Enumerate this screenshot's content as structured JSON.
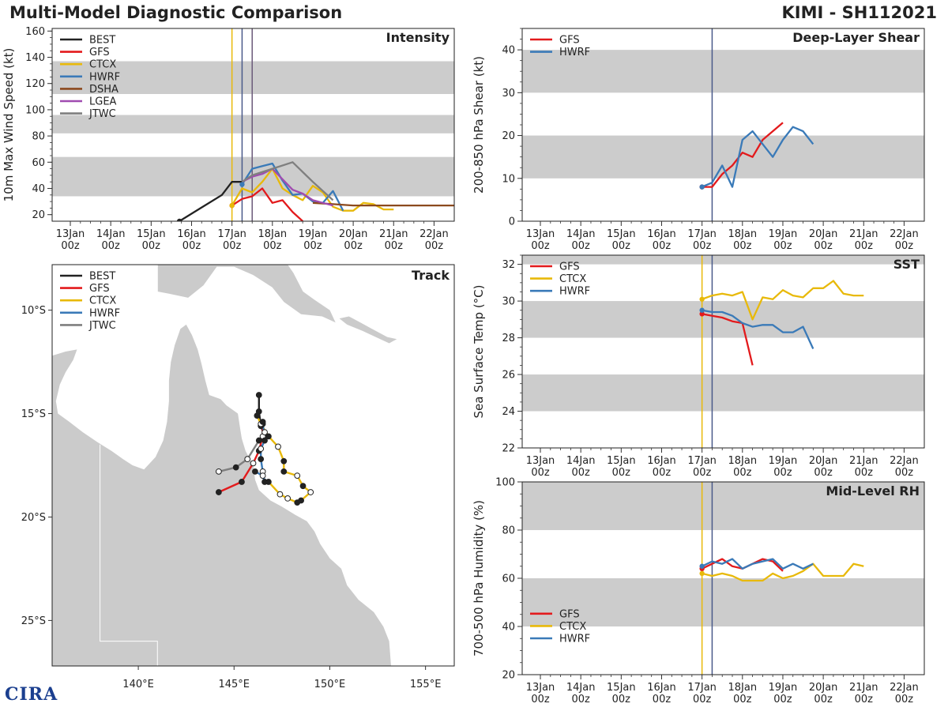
{
  "header": {
    "title": "Multi-Model Diagnostic Comparison",
    "storm": "KIMI - SH112021"
  },
  "logo": {
    "text": "CIRA"
  },
  "colors": {
    "BEST": "#222222",
    "GFS": "#e31a1c",
    "CTCX": "#e8b90a",
    "HWRF": "#3a7ab8",
    "DSHA": "#8c4a1e",
    "LGEA": "#a04bb0",
    "JTWC": "#7f7f7f"
  },
  "time_ticks": [
    "13Jan\n00z",
    "14Jan\n00z",
    "15Jan\n00z",
    "16Jan\n00z",
    "17Jan\n00z",
    "18Jan\n00z",
    "19Jan\n00z",
    "20Jan\n00z",
    "21Jan\n00z",
    "22Jan\n00z"
  ],
  "chart_data": [
    {
      "id": "intensity",
      "type": "line",
      "title": "Intensity",
      "xlabel": "",
      "ylabel": "10m Max Wind Speed (kt)",
      "xlim": [
        12.55,
        22.5
      ],
      "ylim": [
        15,
        162
      ],
      "yticks": [
        20,
        40,
        60,
        80,
        100,
        120,
        140,
        160
      ],
      "bands": [
        [
          34,
          64
        ],
        [
          82,
          96
        ],
        [
          112,
          137
        ]
      ],
      "vlines": [
        {
          "x": 17.0,
          "color": "#e8b90a"
        },
        {
          "x": 17.25,
          "color": "#4a5a8a"
        },
        {
          "x": 17.5,
          "color": "#6b5a7a"
        }
      ],
      "legend": [
        "BEST",
        "GFS",
        "CTCX",
        "HWRF",
        "DSHA",
        "LGEA",
        "JTWC"
      ],
      "series": [
        {
          "name": "BEST",
          "x": [
            15.7,
            16.75,
            17.0,
            17.25
          ],
          "y": [
            15,
            35,
            45,
            45
          ]
        },
        {
          "name": "GFS",
          "x": [
            17.0,
            17.25,
            17.5,
            17.75,
            18.0,
            18.25,
            18.5,
            18.75
          ],
          "y": [
            27,
            32,
            34,
            40,
            29,
            31,
            22,
            15
          ]
        },
        {
          "name": "CTCX",
          "x": [
            17.0,
            17.25,
            17.5,
            17.75,
            18.0,
            18.25,
            18.5,
            18.75,
            19.0,
            19.25,
            19.5,
            19.75,
            20.0,
            20.25,
            20.5,
            20.75,
            21.0
          ],
          "y": [
            27,
            40,
            37,
            45,
            55,
            40,
            35,
            31,
            42,
            37,
            26,
            23,
            23,
            29,
            28,
            24,
            24
          ]
        },
        {
          "name": "HWRF",
          "x": [
            17.25,
            17.5,
            17.75,
            18.0,
            18.25,
            18.5,
            18.75,
            19.0,
            19.25,
            19.5,
            19.75
          ],
          "y": [
            43,
            55,
            57,
            59,
            46,
            35,
            36,
            30,
            29,
            38,
            23
          ]
        },
        {
          "name": "DSHA",
          "x": [
            19.0,
            19.5,
            20.0,
            20.5,
            21.0,
            21.5,
            22.0,
            22.5
          ],
          "y": [
            29,
            28,
            27,
            27,
            27,
            27,
            27,
            27
          ]
        },
        {
          "name": "LGEA",
          "x": [
            17.25,
            17.5,
            17.75,
            18.0,
            18.25,
            18.5,
            18.75,
            19.0,
            19.25,
            19.5
          ],
          "y": [
            45,
            49,
            51,
            55,
            47,
            39,
            36,
            31,
            29,
            27
          ]
        },
        {
          "name": "JTWC",
          "x": [
            17.25,
            17.5,
            18.0,
            18.5,
            19.0,
            19.5
          ],
          "y": [
            45,
            50,
            55,
            60,
            45,
            31
          ]
        }
      ]
    },
    {
      "id": "shear",
      "type": "line",
      "title": "Deep-Layer Shear",
      "xlabel": "",
      "ylabel": "200-850 hPa Shear (kt)",
      "xlim": [
        12.55,
        22.5
      ],
      "ylim": [
        0,
        45
      ],
      "yticks": [
        0,
        10,
        20,
        30,
        40
      ],
      "bands": [
        [
          10,
          20
        ],
        [
          30,
          40
        ]
      ],
      "vlines": [
        {
          "x": 17.25,
          "color": "#4a5a8a"
        }
      ],
      "legend": [
        "GFS",
        "HWRF"
      ],
      "series": [
        {
          "name": "GFS",
          "x": [
            17.0,
            17.25,
            17.5,
            17.75,
            18.0,
            18.25,
            18.5,
            18.75,
            19.0
          ],
          "y": [
            8,
            8,
            11,
            13,
            16,
            15,
            19,
            21,
            23
          ]
        },
        {
          "name": "HWRF",
          "x": [
            17.0,
            17.25,
            17.5,
            17.75,
            18.0,
            18.25,
            18.5,
            18.75,
            19.0,
            19.25,
            19.5,
            19.75
          ],
          "y": [
            8,
            9,
            13,
            8,
            19,
            21,
            18,
            15,
            19,
            22,
            21,
            18
          ]
        }
      ]
    },
    {
      "id": "sst",
      "type": "line",
      "title": "SST",
      "xlabel": "",
      "ylabel": "Sea Surface Temp (°C)",
      "xlim": [
        12.55,
        22.5
      ],
      "ylim": [
        22,
        32.5
      ],
      "yticks": [
        22,
        24,
        26,
        28,
        30,
        32
      ],
      "bands": [
        [
          24,
          26
        ],
        [
          28,
          30
        ],
        [
          32,
          33
        ]
      ],
      "vlines": [
        {
          "x": 17.0,
          "color": "#e8b90a"
        },
        {
          "x": 17.25,
          "color": "#4a5a8a"
        }
      ],
      "legend": [
        "GFS",
        "CTCX",
        "HWRF"
      ],
      "series": [
        {
          "name": "GFS",
          "x": [
            17.0,
            17.25,
            17.5,
            17.75,
            18.0,
            18.25
          ],
          "y": [
            29.3,
            29.2,
            29.1,
            28.9,
            28.8,
            26.5
          ]
        },
        {
          "name": "CTCX",
          "x": [
            17.0,
            17.25,
            17.5,
            17.75,
            18.0,
            18.25,
            18.5,
            18.75,
            19.0,
            19.25,
            19.5,
            19.75,
            20.0,
            20.25,
            20.5,
            20.75,
            21.0
          ],
          "y": [
            30.1,
            30.3,
            30.4,
            30.3,
            30.5,
            29.0,
            30.2,
            30.1,
            30.6,
            30.3,
            30.2,
            30.7,
            30.7,
            31.1,
            30.4,
            30.3,
            30.3
          ]
        },
        {
          "name": "HWRF",
          "x": [
            17.0,
            17.25,
            17.5,
            17.75,
            18.0,
            18.25,
            18.5,
            18.75,
            19.0,
            19.25,
            19.5,
            19.75
          ],
          "y": [
            29.5,
            29.4,
            29.4,
            29.2,
            28.8,
            28.6,
            28.7,
            28.7,
            28.3,
            28.3,
            28.6,
            27.4
          ]
        }
      ]
    },
    {
      "id": "rh",
      "type": "line",
      "title": "Mid-Level RH",
      "xlabel": "",
      "ylabel": "700-500 hPa Humidity (%)",
      "xlim": [
        12.55,
        22.5
      ],
      "ylim": [
        20,
        100
      ],
      "yticks": [
        20,
        40,
        60,
        80,
        100
      ],
      "bands": [
        [
          40,
          60
        ],
        [
          80,
          100
        ]
      ],
      "vlines": [
        {
          "x": 17.0,
          "color": "#e8b90a"
        },
        {
          "x": 17.25,
          "color": "#4a5a8a"
        }
      ],
      "legend": [
        "GFS",
        "CTCX",
        "HWRF"
      ],
      "series": [
        {
          "name": "GFS",
          "x": [
            17.0,
            17.25,
            17.5,
            17.75,
            18.0,
            18.25,
            18.5,
            18.75,
            19.0
          ],
          "y": [
            64,
            66,
            68,
            65,
            64,
            66,
            68,
            67,
            63
          ]
        },
        {
          "name": "CTCX",
          "x": [
            17.0,
            17.25,
            17.5,
            17.75,
            18.0,
            18.25,
            18.5,
            18.75,
            19.0,
            19.25,
            19.5,
            19.75,
            20.0,
            20.25,
            20.5,
            20.75,
            21.0
          ],
          "y": [
            62,
            61,
            62,
            61,
            59,
            59,
            59,
            62,
            60,
            61,
            63,
            66,
            61,
            61,
            61,
            66,
            65
          ]
        },
        {
          "name": "HWRF",
          "x": [
            17.0,
            17.25,
            17.5,
            17.75,
            18.0,
            18.25,
            18.5,
            18.75,
            19.0,
            19.25,
            19.5,
            19.75
          ],
          "y": [
            65,
            67,
            66,
            68,
            64,
            66,
            67,
            68,
            64,
            66,
            64,
            66
          ]
        }
      ]
    },
    {
      "id": "track",
      "type": "scatter",
      "title": "Track",
      "xlabel": "",
      "ylabel": "",
      "xlim": [
        135.5,
        156.5
      ],
      "ylim": [
        -27.2,
        -7.8
      ],
      "xticks": [
        140,
        145,
        150,
        155
      ],
      "xticklabels": [
        "140°E",
        "145°E",
        "150°E",
        "155°E"
      ],
      "yticks": [
        -10,
        -15,
        -20,
        -25
      ],
      "yticklabels": [
        "10°S",
        "15°S",
        "20°S",
        "25°S"
      ],
      "legend": [
        "BEST",
        "GFS",
        "CTCX",
        "HWRF",
        "JTWC"
      ],
      "series": [
        {
          "name": "BEST",
          "lon": [
            146.6,
            146.4,
            146.3,
            146.3
          ],
          "lat": [
            -16.1,
            -15.6,
            -14.9,
            -14.1
          ],
          "filled": [
            true,
            true,
            true,
            true
          ]
        },
        {
          "name": "GFS",
          "lon": [
            146.5,
            146.5,
            146.3,
            146.0,
            145.4,
            144.2
          ],
          "lat": [
            -15.5,
            -16.1,
            -16.8,
            -17.4,
            -18.3,
            -18.8
          ],
          "filled": [
            true,
            false,
            true,
            false,
            true,
            true
          ]
        },
        {
          "name": "CTCX",
          "lon": [
            146.2,
            146.4,
            146.8,
            147.3,
            147.6,
            147.6,
            148.3,
            148.6,
            149.0,
            148.5,
            148.3,
            147.8,
            147.4,
            146.8
          ],
          "lat": [
            -15.1,
            -15.5,
            -16.1,
            -16.6,
            -17.3,
            -17.8,
            -18.0,
            -18.5,
            -18.8,
            -19.2,
            -19.3,
            -19.1,
            -18.9,
            -18.3
          ],
          "filled": [
            true,
            false,
            true,
            false,
            true,
            true,
            false,
            true,
            false,
            true,
            true,
            false,
            false,
            true
          ]
        },
        {
          "name": "HWRF",
          "lon": [
            146.5,
            146.6,
            146.4,
            146.4,
            146.5,
            146.6,
            146.5,
            146.1
          ],
          "lat": [
            -15.4,
            -16.3,
            -16.7,
            -17.2,
            -17.8,
            -18.3,
            -18.0,
            -17.8
          ],
          "filled": [
            true,
            true,
            false,
            true,
            false,
            true,
            false,
            true
          ]
        },
        {
          "name": "JTWC",
          "lon": [
            146.6,
            146.3,
            145.7,
            145.1,
            144.2
          ],
          "lat": [
            -15.9,
            -16.3,
            -17.2,
            -17.6,
            -17.8
          ],
          "filled": [
            false,
            true,
            false,
            true,
            false
          ]
        }
      ]
    }
  ]
}
